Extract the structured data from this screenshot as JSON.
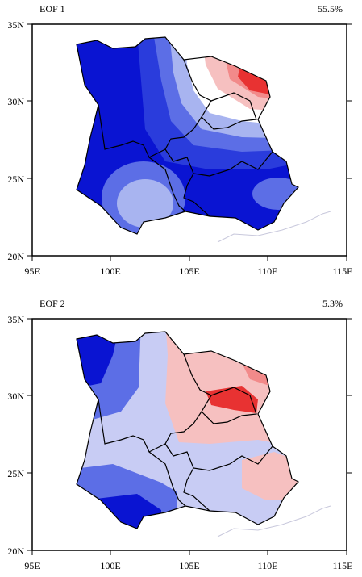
{
  "panels": [
    {
      "title": "EOF 1",
      "variance": "55.5%",
      "lat_ticks": [
        "35N",
        "30N",
        "25N",
        "20N"
      ],
      "lon_ticks": [
        "95E",
        "100E",
        "105E",
        "110E",
        "115E"
      ]
    },
    {
      "title": "EOF 2",
      "variance": "5.3%",
      "lat_ticks": [
        "35N",
        "30N",
        "25N",
        "20N"
      ],
      "lon_ticks": [
        "95E",
        "100E",
        "105E",
        "110E",
        "115E"
      ]
    }
  ],
  "colors": {
    "deep_blue": "#0a14d2",
    "blue": "#2a3cdc",
    "mid_blue": "#5c6ee6",
    "light_blue": "#a8b4f0",
    "pale_blue": "#c8ccf4",
    "white": "#ffffff",
    "pale_red": "#f6c0c0",
    "light_red": "#f28a8a",
    "red": "#e83232",
    "boundary": "#000000",
    "coast": "#c8c8dc"
  },
  "map_extent": {
    "lon": [
      95,
      115
    ],
    "lat": [
      20,
      35
    ]
  }
}
